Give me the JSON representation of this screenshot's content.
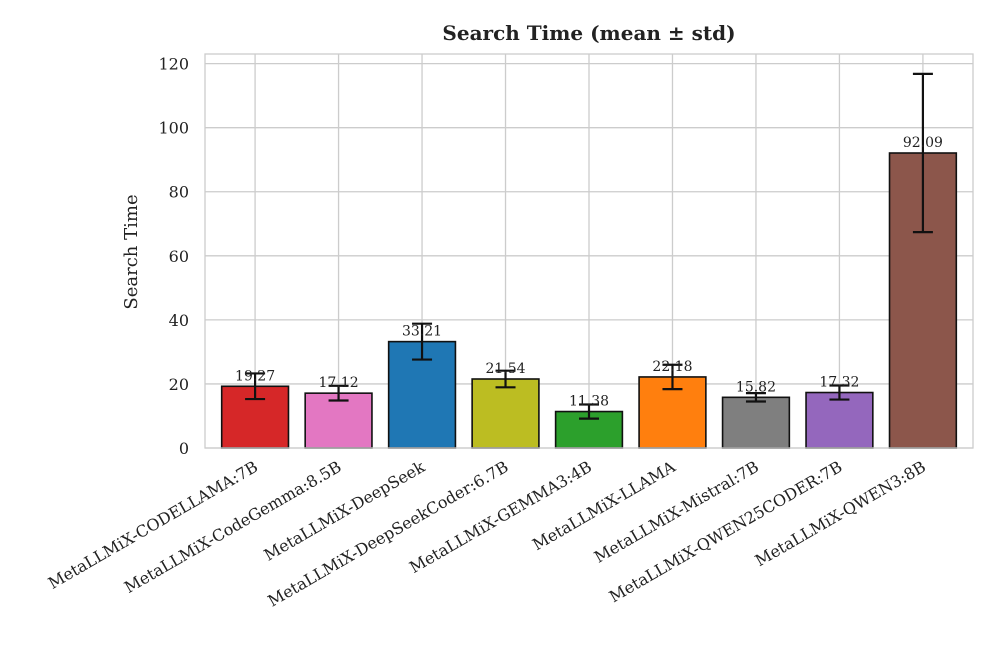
{
  "chart_data": {
    "type": "bar",
    "title": "Search Time (mean ± std)",
    "xlabel": "",
    "ylabel": "Search Time",
    "ylim": [
      0,
      123
    ],
    "yticks": [
      0,
      20,
      40,
      60,
      80,
      100,
      120
    ],
    "ytick_labels": [
      "0",
      "20",
      "40",
      "60",
      "80",
      "100",
      "120"
    ],
    "grid": true,
    "categories": [
      "MetaLLMiX-CODELLAMA:7B",
      "MetaLLMiX-CodeGemma:8.5B",
      "MetaLLMiX-DeepSeek",
      "MetaLLMiX-DeepSeekCoder:6.7B",
      "MetaLLMiX-GEMMA3:4B",
      "MetaLLMiX-LLAMA",
      "MetaLLMiX-Mistral:7B",
      "MetaLLMiX-QWEN25CODER:7B",
      "MetaLLMiX-QWEN3:8B"
    ],
    "values": [
      19.27,
      17.12,
      33.21,
      21.54,
      11.38,
      22.18,
      15.82,
      17.32,
      92.09
    ],
    "value_labels": [
      "19.27",
      "17.12",
      "33.21",
      "21.54",
      "11.38",
      "22.18",
      "15.82",
      "17.32",
      "92.09"
    ],
    "errors": [
      4.0,
      2.3,
      5.6,
      2.6,
      2.2,
      3.8,
      1.3,
      2.2,
      24.7
    ],
    "colors": [
      "#d62728",
      "#e377c2",
      "#1f77b4",
      "#bcbd22",
      "#2ca02c",
      "#ff7f0e",
      "#7f7f7f",
      "#9467bd",
      "#8c564b"
    ]
  }
}
